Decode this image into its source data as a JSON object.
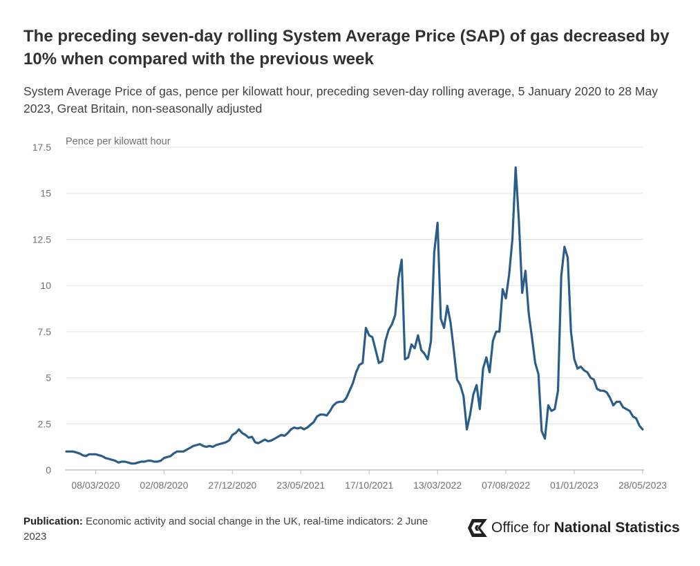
{
  "header": {
    "title": "The preceding seven-day rolling System Average Price (SAP) of gas decreased by 10% when compared with the previous week",
    "subtitle": "System Average Price of gas, pence per kilowatt hour, preceding seven-day rolling average, 5 January 2020 to 28 May 2023, Great Britain, non-seasonally adjusted"
  },
  "footer": {
    "publication_label": "Publication:",
    "publication_text": "Economic activity and social change in the UK, real-time indicators: 2 June 2023"
  },
  "logo": {
    "prefix": "Office for",
    "strong": "National Statistics"
  },
  "colors": {
    "line": "#2a5d8a",
    "grid": "#e2e2e2",
    "axis": "#bfbfbf"
  },
  "chart_data": {
    "type": "line",
    "title": "",
    "ylabel": "Pence per kilowatt hour",
    "xlabel": "",
    "ylim": [
      0,
      17.5
    ],
    "yticks": [
      0,
      2.5,
      5,
      7.5,
      10,
      12.5,
      15,
      17.5
    ],
    "ytick_labels": [
      "0",
      "2.5",
      "5",
      "7.5",
      "10",
      "12.5",
      "15",
      "17.5"
    ],
    "xticks": [
      9,
      30,
      51,
      72,
      93,
      114,
      135,
      156,
      177
    ],
    "xtick_labels": [
      "08/03/2020",
      "02/08/2020",
      "27/12/2020",
      "23/05/2021",
      "17/10/2021",
      "13/03/2022",
      "07/08/2022",
      "01/01/2023",
      "28/05/2023"
    ],
    "grid": true,
    "series": [
      {
        "name": "System Average Price of gas",
        "values": [
          1.0,
          1.0,
          1.0,
          0.95,
          0.9,
          0.8,
          0.75,
          0.85,
          0.85,
          0.85,
          0.8,
          0.75,
          0.65,
          0.6,
          0.55,
          0.5,
          0.4,
          0.45,
          0.45,
          0.4,
          0.35,
          0.35,
          0.4,
          0.45,
          0.45,
          0.5,
          0.5,
          0.45,
          0.45,
          0.5,
          0.65,
          0.7,
          0.75,
          0.9,
          1.0,
          1.0,
          1.0,
          1.1,
          1.2,
          1.3,
          1.35,
          1.4,
          1.3,
          1.25,
          1.3,
          1.25,
          1.35,
          1.4,
          1.45,
          1.5,
          1.6,
          1.9,
          2.0,
          2.2,
          2.0,
          1.9,
          1.75,
          1.8,
          1.5,
          1.45,
          1.55,
          1.65,
          1.55,
          1.6,
          1.7,
          1.8,
          1.9,
          1.85,
          2.0,
          2.2,
          2.3,
          2.25,
          2.3,
          2.2,
          2.3,
          2.45,
          2.6,
          2.9,
          3.0,
          3.0,
          2.95,
          3.2,
          3.5,
          3.65,
          3.7,
          3.7,
          3.9,
          4.3,
          4.7,
          5.3,
          5.7,
          5.8,
          7.7,
          7.3,
          7.2,
          6.5,
          5.8,
          5.9,
          7.0,
          7.6,
          7.9,
          8.4,
          10.4,
          11.4,
          6.0,
          6.1,
          6.8,
          6.6,
          7.3,
          6.5,
          6.3,
          6.0,
          7.0,
          11.8,
          13.4,
          8.2,
          7.7,
          8.9,
          8.0,
          6.5,
          4.9,
          4.6,
          4.0,
          2.2,
          3.0,
          4.1,
          4.6,
          3.3,
          5.5,
          6.1,
          5.3,
          7.0,
          7.5,
          7.5,
          9.8,
          9.3,
          10.6,
          12.5,
          16.4,
          13.5,
          9.6,
          10.8,
          8.5,
          7.2,
          5.8,
          5.2,
          2.1,
          1.7,
          3.5,
          3.2,
          3.3,
          4.3,
          10.5,
          12.1,
          11.5,
          7.5,
          6.0,
          5.5,
          5.6,
          5.4,
          5.3,
          5.0,
          4.9,
          4.4,
          4.3,
          4.3,
          4.2,
          3.9,
          3.5,
          3.7,
          3.7,
          3.4,
          3.3,
          3.2,
          2.9,
          2.8,
          2.4,
          2.2
        ]
      }
    ]
  }
}
